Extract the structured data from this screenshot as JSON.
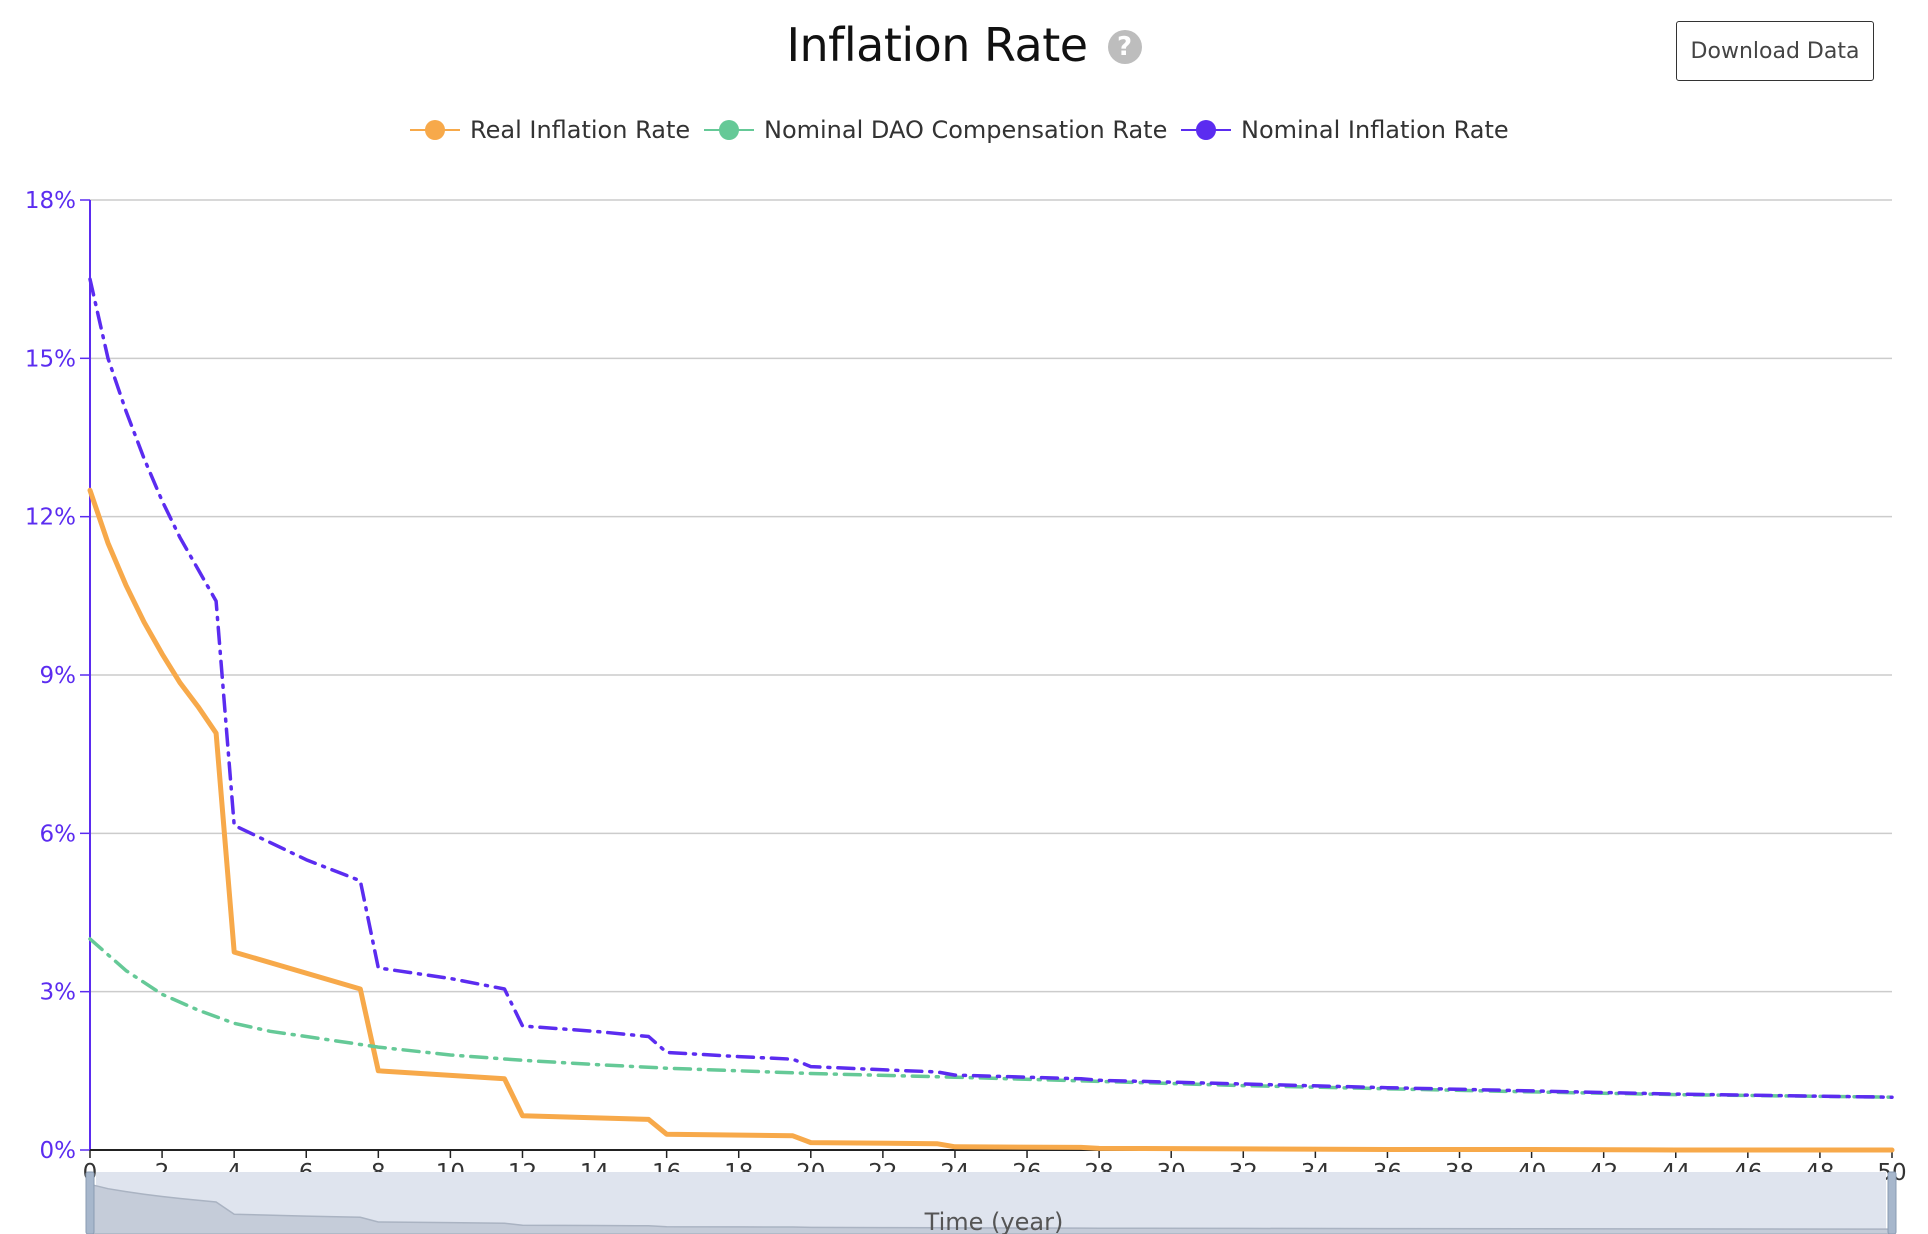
{
  "header": {
    "title": "Inflation Rate",
    "help_glyph": "?",
    "help_icon": "question-circle-icon",
    "download_label": "Download Data"
  },
  "chart_data": {
    "type": "line",
    "xlabel": "Time (year)",
    "ylabel": "",
    "xlim": [
      0,
      50
    ],
    "ylim": [
      0,
      18
    ],
    "x_ticks": [
      "0",
      "2",
      "4",
      "6",
      "8",
      "10",
      "12",
      "14",
      "16",
      "18",
      "20",
      "22",
      "24",
      "26",
      "28",
      "30",
      "32",
      "34",
      "36",
      "38",
      "40",
      "42",
      "44",
      "46",
      "48",
      "50"
    ],
    "y_ticks": [
      "0%",
      "3%",
      "6%",
      "9%",
      "12%",
      "15%",
      "18%"
    ],
    "grid": true,
    "legend_position": "top",
    "colors": {
      "axis": "#5b2cf0",
      "grid": "#cccccc",
      "tick_text": "#333333"
    },
    "series": [
      {
        "name": "Real Inflation Rate",
        "color": "#f7a94a",
        "style": "solid",
        "x": [
          0,
          0.5,
          1,
          1.5,
          2,
          2.5,
          3,
          3.5,
          4,
          7.5,
          8,
          11.5,
          12,
          15.5,
          16,
          19.5,
          20,
          23.5,
          24,
          27.5,
          28,
          32,
          36,
          40,
          44,
          50
        ],
        "values": [
          12.5,
          11.5,
          10.7,
          10.0,
          9.4,
          8.85,
          8.4,
          7.9,
          3.75,
          3.05,
          1.5,
          1.35,
          0.65,
          0.58,
          0.3,
          0.27,
          0.14,
          0.12,
          0.06,
          0.05,
          0.03,
          0.02,
          0.01,
          0.01,
          0.0,
          0.0
        ]
      },
      {
        "name": "Nominal DAO Compensation Rate",
        "color": "#65c997",
        "style": "dashdot",
        "x": [
          0,
          1,
          2,
          3,
          4,
          5,
          6,
          8,
          10,
          12,
          14,
          16,
          18,
          20,
          24,
          28,
          32,
          36,
          40,
          44,
          50
        ],
        "values": [
          4.0,
          3.4,
          2.95,
          2.65,
          2.4,
          2.25,
          2.15,
          1.95,
          1.8,
          1.7,
          1.62,
          1.55,
          1.5,
          1.45,
          1.38,
          1.3,
          1.22,
          1.16,
          1.1,
          1.05,
          1.0
        ]
      },
      {
        "name": "Nominal Inflation Rate",
        "color": "#5b2cf0",
        "style": "dashdot",
        "x": [
          0,
          0.5,
          1,
          1.5,
          2,
          2.5,
          3,
          3.5,
          4,
          6,
          7.5,
          8,
          10,
          11.5,
          12,
          14,
          15.5,
          16,
          18,
          19.5,
          20,
          22,
          23.5,
          24,
          27.5,
          28,
          32,
          36,
          40,
          44,
          50
        ],
        "values": [
          16.5,
          15.0,
          14.0,
          13.1,
          12.3,
          11.6,
          11.0,
          10.4,
          6.15,
          5.5,
          5.1,
          3.45,
          3.25,
          3.05,
          2.35,
          2.25,
          2.15,
          1.85,
          1.77,
          1.72,
          1.58,
          1.52,
          1.48,
          1.42,
          1.35,
          1.32,
          1.25,
          1.18,
          1.12,
          1.06,
          1.0
        ]
      }
    ]
  }
}
